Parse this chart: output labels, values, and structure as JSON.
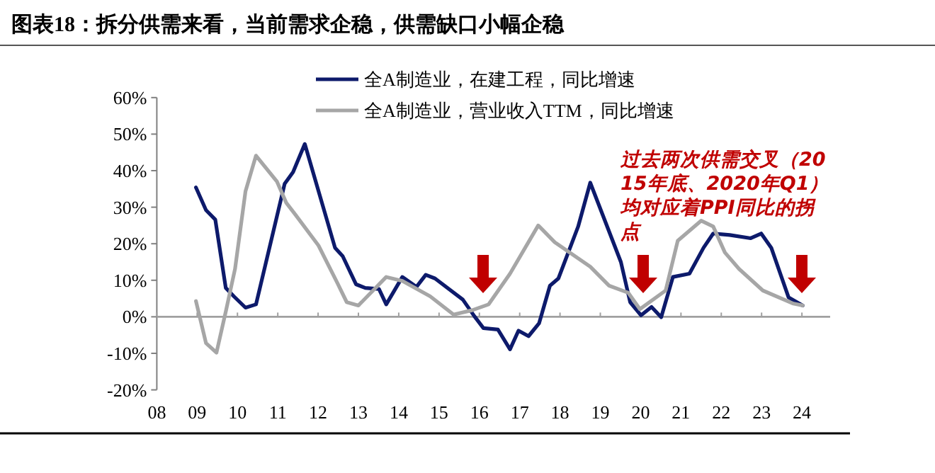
{
  "chart_data": {
    "type": "line",
    "title": "图表18：拆分供需来看，当前需求企稳，供需缺口小幅企稳",
    "annotations": [
      "过去两次供需交叉（2015年底、2020年Q1）均对应着PPI同比的拐点"
    ],
    "legend": "top",
    "marker": "none",
    "line_style": "solid",
    "xlim": [
      2008,
      2024.7
    ],
    "xticks": [
      {
        "value": 2008,
        "label": "08"
      },
      {
        "value": 2009,
        "label": "09"
      },
      {
        "value": 2010,
        "label": "10"
      },
      {
        "value": 2011,
        "label": "11"
      },
      {
        "value": 2012,
        "label": "12"
      },
      {
        "value": 2013,
        "label": "13"
      },
      {
        "value": 2014,
        "label": "14"
      },
      {
        "value": 2015,
        "label": "15"
      },
      {
        "value": 2016,
        "label": "16"
      },
      {
        "value": 2017,
        "label": "17"
      },
      {
        "value": 2018,
        "label": "18"
      },
      {
        "value": 2019,
        "label": "19"
      },
      {
        "value": 2020,
        "label": "20"
      },
      {
        "value": 2021,
        "label": "21"
      },
      {
        "value": 2022,
        "label": "22"
      },
      {
        "value": 2023,
        "label": "23"
      },
      {
        "value": 2024,
        "label": "24"
      }
    ],
    "ylim": [
      -20,
      60
    ],
    "yticks": [
      {
        "value": -20,
        "label": "-20%"
      },
      {
        "value": -10,
        "label": "-10%"
      },
      {
        "value": 0,
        "label": "0%"
      },
      {
        "value": 10,
        "label": "10%"
      },
      {
        "value": 20,
        "label": "20%"
      },
      {
        "value": 30,
        "label": "30%"
      },
      {
        "value": 40,
        "label": "40%"
      },
      {
        "value": 50,
        "label": "50%"
      },
      {
        "value": 60,
        "label": "60%"
      }
    ],
    "series": [
      {
        "name": "全A制造业，在建工程，同比增速",
        "color": "#0d1a6b",
        "x": [
          2008.97,
          2009.22,
          2009.45,
          2009.71,
          2009.91,
          2010.2,
          2010.46,
          2011.17,
          2011.38,
          2011.67,
          2012.42,
          2012.61,
          2012.94,
          2013.17,
          2013.51,
          2013.69,
          2014.09,
          2014.44,
          2014.67,
          2014.9,
          2015.59,
          2015.88,
          2016.1,
          2016.46,
          2016.76,
          2016.97,
          2017.22,
          2017.48,
          2017.75,
          2017.96,
          2018.45,
          2018.75,
          2019.51,
          2019.74,
          2020.01,
          2020.27,
          2020.51,
          2020.8,
          2021.21,
          2021.56,
          2021.8,
          2022.21,
          2022.73,
          2022.99,
          2023.24,
          2023.67,
          2024.02
        ],
        "values": [
          35.4,
          29.2,
          26.6,
          7.9,
          5.6,
          2.5,
          3.4,
          36.4,
          39.6,
          47.3,
          18.9,
          16.6,
          8.9,
          7.9,
          7.6,
          3.4,
          10.9,
          8.2,
          11.5,
          10.5,
          4.7,
          0.1,
          -3.1,
          -3.5,
          -8.9,
          -3.8,
          -5.3,
          -1.8,
          8.5,
          10.5,
          24.7,
          36.7,
          15.0,
          4.0,
          0.4,
          2.7,
          -0.1,
          10.9,
          11.8,
          18.9,
          22.8,
          22.4,
          21.5,
          22.8,
          18.9,
          5.3,
          3.1
        ]
      },
      {
        "name": "全A制造业，营业收入TTM，同比增速",
        "color": "#a6a6a6",
        "x": [
          2008.97,
          2009.22,
          2009.48,
          2009.71,
          2009.94,
          2010.2,
          2010.46,
          2010.98,
          2011.21,
          2011.44,
          2012.01,
          2012.48,
          2012.71,
          2013.0,
          2013.69,
          2014.09,
          2014.78,
          2015.36,
          2015.82,
          2016.23,
          2016.76,
          2017.46,
          2017.87,
          2018.75,
          2019.22,
          2019.69,
          2019.98,
          2020.62,
          2020.92,
          2021.5,
          2021.8,
          2022.09,
          2022.44,
          2023.03,
          2023.79,
          2024.02
        ],
        "values": [
          4.3,
          -7.2,
          -9.8,
          1.4,
          13.1,
          34.4,
          44.1,
          37.0,
          31.2,
          27.9,
          19.5,
          9.2,
          4.0,
          3.1,
          10.9,
          9.8,
          5.6,
          0.6,
          1.8,
          3.4,
          11.8,
          25.0,
          20.4,
          13.7,
          8.5,
          6.6,
          2.1,
          7.2,
          20.8,
          26.3,
          24.7,
          17.6,
          13.1,
          7.2,
          3.6,
          3.1
        ]
      }
    ]
  }
}
